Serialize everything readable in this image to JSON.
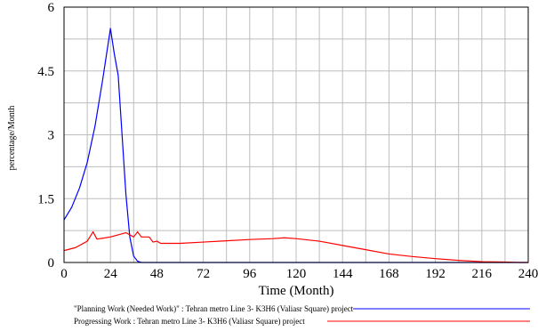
{
  "chart_data": {
    "type": "line",
    "title": "",
    "xlabel": "Time (Month)",
    "ylabel": "percentage/Month",
    "xlim": [
      0,
      240
    ],
    "ylim": [
      0,
      6
    ],
    "x_ticks": [
      0,
      24,
      48,
      72,
      96,
      120,
      144,
      168,
      192,
      216,
      240
    ],
    "y_ticks": [
      0,
      1.5,
      3,
      4.5,
      6
    ],
    "y_tick_labels": [
      "0",
      "1.5",
      "3",
      "4.5",
      "6"
    ],
    "grid": true,
    "legend": "bottom",
    "series": [
      {
        "name": "\"Planning Work (Needed Work)\" : Tehran metro Line 3- K3H6 (Valiasr Square) project",
        "color": "#0000ff",
        "x": [
          0,
          4,
          8,
          12,
          16,
          20,
          22,
          24,
          26,
          28,
          30,
          32,
          34,
          36,
          38,
          40,
          48,
          240
        ],
        "y": [
          1.0,
          1.3,
          1.75,
          2.35,
          3.2,
          4.3,
          4.9,
          5.5,
          4.9,
          4.4,
          3.0,
          1.6,
          0.6,
          0.15,
          0.03,
          0.0,
          0.0,
          0.0
        ]
      },
      {
        "name": "Progressing Work : Tehran metro Line 3- K3H6 (Valiasr Square) project",
        "color": "#ff0000",
        "x": [
          0,
          6,
          12,
          15,
          17,
          20,
          24,
          28,
          32,
          36,
          38,
          40,
          44,
          46,
          48,
          50,
          60,
          72,
          84,
          96,
          108,
          114,
          120,
          132,
          144,
          156,
          168,
          180,
          192,
          204,
          216,
          228,
          236,
          240
        ],
        "y": [
          0.28,
          0.35,
          0.5,
          0.72,
          0.55,
          0.57,
          0.6,
          0.65,
          0.7,
          0.6,
          0.72,
          0.6,
          0.6,
          0.48,
          0.5,
          0.45,
          0.45,
          0.48,
          0.51,
          0.54,
          0.56,
          0.58,
          0.56,
          0.5,
          0.4,
          0.3,
          0.2,
          0.14,
          0.09,
          0.05,
          0.02,
          0.01,
          0.0,
          0.0
        ]
      }
    ]
  }
}
